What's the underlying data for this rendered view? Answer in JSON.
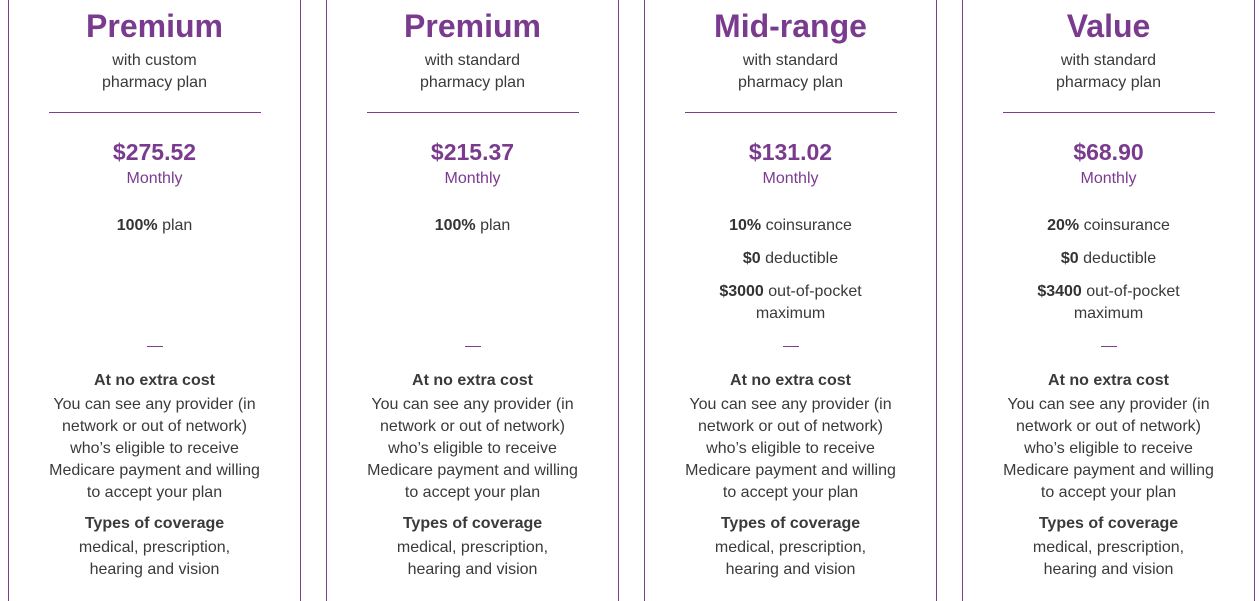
{
  "cards": [
    {
      "title": "Premium",
      "subtitle": "with custom pharmacy plan",
      "price": "$275.52",
      "period": "Monthly",
      "features": [
        {
          "bold": "100%",
          "text": "plan"
        }
      ],
      "extra_heading": "At no extra cost",
      "extra_text": "You can see any provider (in network or out of network) who’s eligible to receive Medicare payment and willing to accept your plan",
      "coverage_heading": "Types of coverage",
      "coverage_text": "medical, prescription, hearing and vision"
    },
    {
      "title": "Premium",
      "subtitle": "with standard pharmacy plan",
      "price": "$215.37",
      "period": "Monthly",
      "features": [
        {
          "bold": "100%",
          "text": "plan"
        }
      ],
      "extra_heading": "At no extra cost",
      "extra_text": "You can see any provider (in network or out of network) who’s eligible to receive Medicare payment and willing to accept your plan",
      "coverage_heading": "Types of coverage",
      "coverage_text": "medical, prescription, hearing and vision"
    },
    {
      "title": "Mid-range",
      "subtitle": "with standard pharmacy plan",
      "price": "$131.02",
      "period": "Monthly",
      "features": [
        {
          "bold": "10%",
          "text": "coinsurance"
        },
        {
          "bold": "$0",
          "text": "deductible"
        },
        {
          "bold": "$3000",
          "text": "out-of-pocket maximum"
        }
      ],
      "extra_heading": "At no extra cost",
      "extra_text": "You can see any provider (in network or out of network) who’s eligible to receive Medicare payment and willing to accept your plan",
      "coverage_heading": "Types of coverage",
      "coverage_text": "medical, prescription, hearing and vision"
    },
    {
      "title": "Value",
      "subtitle": "with standard pharmacy plan",
      "price": "$68.90",
      "period": "Monthly",
      "features": [
        {
          "bold": "20%",
          "text": "coinsurance"
        },
        {
          "bold": "$0",
          "text": "deductible"
        },
        {
          "bold": "$3400",
          "text": "out-of-pocket maximum"
        }
      ],
      "extra_heading": "At no extra cost",
      "extra_text": "You can see any provider (in network or out of network) who’s eligible to receive Medicare payment and willing to accept your plan",
      "coverage_heading": "Types of coverage",
      "coverage_text": "medical, prescription, hearing and vision"
    }
  ]
}
